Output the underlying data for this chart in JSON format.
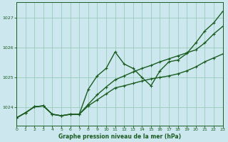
{
  "background_color": "#cce8ee",
  "grid_color": "#99ccbb",
  "line_color": "#1a5c20",
  "xlabel": "Graphe pression niveau de la mer (hPa)",
  "ylim": [
    1023.4,
    1027.5
  ],
  "xlim": [
    0,
    23
  ],
  "yticks": [
    1024,
    1025,
    1026,
    1027
  ],
  "xtick_labels": [
    "0",
    "1",
    "2",
    "3",
    "4",
    "5",
    "6",
    "7",
    "8",
    "9",
    "10",
    "11",
    "12",
    "13",
    "14",
    "15",
    "16",
    "17",
    "18",
    "19",
    "20",
    "21",
    "22",
    "23"
  ],
  "series": [
    [
      1023.65,
      1023.82,
      1024.02,
      1024.05,
      1023.77,
      1023.72,
      1023.77,
      1023.77,
      1024.6,
      1025.05,
      1025.3,
      1025.85,
      1025.45,
      1025.3,
      1025.0,
      1024.72,
      1025.22,
      1025.52,
      1025.58,
      1025.8,
      1026.15,
      1026.55,
      1026.82,
      1027.2
    ],
    [
      1023.65,
      1023.82,
      1024.02,
      1024.05,
      1023.77,
      1023.72,
      1023.77,
      1023.77,
      1024.1,
      1024.42,
      1024.68,
      1024.92,
      1025.05,
      1025.18,
      1025.3,
      1025.4,
      1025.52,
      1025.62,
      1025.72,
      1025.82,
      1025.92,
      1026.15,
      1026.45,
      1026.7
    ],
    [
      1023.65,
      1023.82,
      1024.02,
      1024.05,
      1023.77,
      1023.72,
      1023.77,
      1023.77,
      1024.05,
      1024.25,
      1024.45,
      1024.65,
      1024.72,
      1024.8,
      1024.88,
      1024.95,
      1025.0,
      1025.05,
      1025.12,
      1025.22,
      1025.35,
      1025.52,
      1025.65,
      1025.78
    ]
  ],
  "line_width": 1.0,
  "marker_size": 3.0
}
